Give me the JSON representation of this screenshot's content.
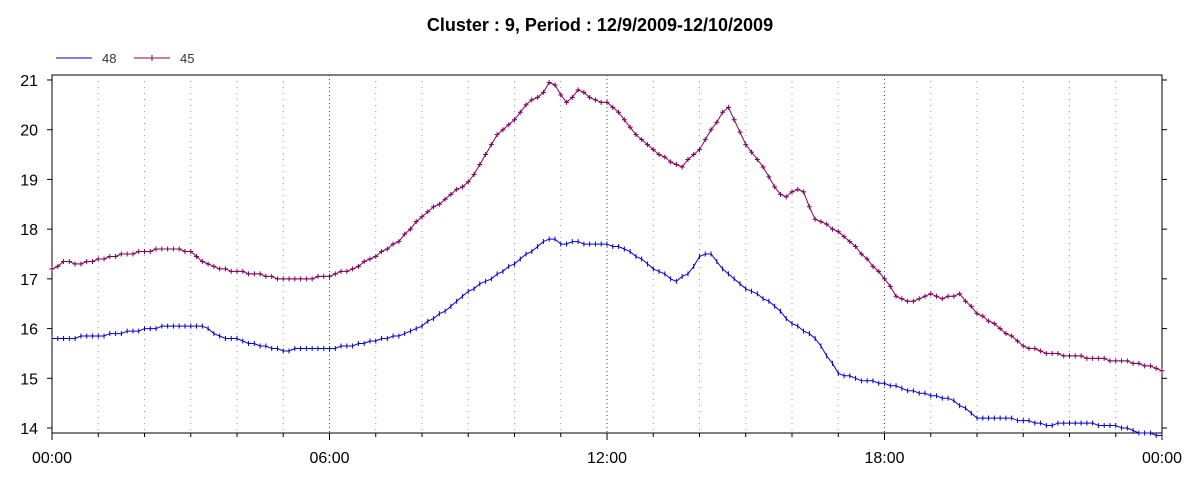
{
  "chart_data": {
    "type": "line",
    "title": "Cluster : 9, Period : 12/9/2009-12/10/2009",
    "xlabel": "",
    "ylabel": "",
    "x_unit": "hours",
    "xlim": [
      0,
      24
    ],
    "ylim": [
      13.9,
      21.1
    ],
    "x_ticks": [
      0,
      6,
      12,
      18,
      24
    ],
    "x_tick_labels": [
      "00:00",
      "06:00",
      "12:00",
      "18:00",
      "00:00"
    ],
    "y_ticks": [
      14,
      15,
      16,
      17,
      18,
      19,
      20,
      21
    ],
    "y_tick_labels": [
      "14",
      "15",
      "16",
      "17",
      "18",
      "19",
      "20",
      "21"
    ],
    "grid": "dotted vertical every hour",
    "legend_position": "top-left",
    "series": [
      {
        "name": "48",
        "color": "#0000cc",
        "marker": "tick",
        "points": [
          [
            0,
            15.78
          ],
          [
            0.5,
            15.82
          ],
          [
            1.0,
            15.85
          ],
          [
            1.5,
            15.92
          ],
          [
            2.0,
            15.98
          ],
          [
            2.5,
            16.05
          ],
          [
            3.0,
            16.05
          ],
          [
            3.3,
            16.02
          ],
          [
            3.6,
            15.85
          ],
          [
            4.0,
            15.78
          ],
          [
            4.5,
            15.65
          ],
          [
            5.0,
            15.55
          ],
          [
            5.5,
            15.6
          ],
          [
            6.0,
            15.6
          ],
          [
            6.5,
            15.65
          ],
          [
            7.0,
            15.75
          ],
          [
            7.5,
            15.85
          ],
          [
            8.0,
            16.05
          ],
          [
            8.5,
            16.35
          ],
          [
            9.0,
            16.75
          ],
          [
            9.5,
            17.0
          ],
          [
            10.0,
            17.3
          ],
          [
            10.5,
            17.65
          ],
          [
            10.8,
            17.85
          ],
          [
            11.0,
            17.7
          ],
          [
            11.3,
            17.75
          ],
          [
            11.6,
            17.7
          ],
          [
            12.0,
            17.7
          ],
          [
            12.5,
            17.55
          ],
          [
            13.0,
            17.2
          ],
          [
            13.5,
            16.95
          ],
          [
            13.8,
            17.15
          ],
          [
            14.0,
            17.45
          ],
          [
            14.2,
            17.55
          ],
          [
            14.5,
            17.2
          ],
          [
            15.0,
            16.8
          ],
          [
            15.5,
            16.55
          ],
          [
            16.0,
            16.1
          ],
          [
            16.5,
            15.8
          ],
          [
            17.0,
            15.1
          ],
          [
            17.5,
            14.95
          ],
          [
            18.0,
            14.9
          ],
          [
            18.5,
            14.75
          ],
          [
            19.0,
            14.65
          ],
          [
            19.5,
            14.55
          ],
          [
            20.0,
            14.2
          ],
          [
            20.5,
            14.2
          ],
          [
            21.0,
            14.15
          ],
          [
            21.5,
            14.05
          ],
          [
            22.0,
            14.1
          ],
          [
            22.5,
            14.08
          ],
          [
            23.0,
            14.05
          ],
          [
            23.5,
            13.9
          ],
          [
            24.0,
            13.85
          ]
        ]
      },
      {
        "name": "45",
        "color": "#800060",
        "marker": "plus",
        "points": [
          [
            0,
            17.2
          ],
          [
            0.3,
            17.35
          ],
          [
            0.6,
            17.3
          ],
          [
            1.0,
            17.38
          ],
          [
            1.5,
            17.48
          ],
          [
            2.0,
            17.55
          ],
          [
            2.5,
            17.6
          ],
          [
            3.0,
            17.55
          ],
          [
            3.3,
            17.3
          ],
          [
            3.6,
            17.2
          ],
          [
            4.0,
            17.15
          ],
          [
            4.5,
            17.08
          ],
          [
            5.0,
            17.0
          ],
          [
            5.5,
            17.0
          ],
          [
            6.0,
            17.05
          ],
          [
            6.5,
            17.2
          ],
          [
            7.0,
            17.45
          ],
          [
            7.5,
            17.75
          ],
          [
            8.0,
            18.25
          ],
          [
            8.5,
            18.6
          ],
          [
            9.0,
            18.95
          ],
          [
            9.3,
            19.35
          ],
          [
            9.6,
            19.9
          ],
          [
            10.0,
            20.2
          ],
          [
            10.3,
            20.55
          ],
          [
            10.6,
            20.7
          ],
          [
            10.8,
            21.05
          ],
          [
            11.1,
            20.5
          ],
          [
            11.4,
            20.8
          ],
          [
            11.7,
            20.6
          ],
          [
            12.0,
            20.55
          ],
          [
            12.3,
            20.3
          ],
          [
            12.6,
            19.9
          ],
          [
            13.0,
            19.6
          ],
          [
            13.3,
            19.4
          ],
          [
            13.6,
            19.25
          ],
          [
            14.0,
            19.6
          ],
          [
            14.3,
            20.05
          ],
          [
            14.6,
            20.5
          ],
          [
            14.8,
            20.1
          ],
          [
            15.0,
            19.7
          ],
          [
            15.4,
            19.2
          ],
          [
            15.8,
            18.6
          ],
          [
            16.2,
            18.85
          ],
          [
            16.5,
            18.2
          ],
          [
            16.8,
            18.05
          ],
          [
            17.2,
            17.8
          ],
          [
            17.5,
            17.5
          ],
          [
            18.0,
            17.0
          ],
          [
            18.3,
            16.6
          ],
          [
            18.6,
            16.55
          ],
          [
            19.0,
            16.7
          ],
          [
            19.3,
            16.6
          ],
          [
            19.6,
            16.7
          ],
          [
            20.0,
            16.3
          ],
          [
            20.5,
            16.0
          ],
          [
            21.0,
            15.65
          ],
          [
            21.5,
            15.5
          ],
          [
            22.0,
            15.45
          ],
          [
            22.5,
            15.4
          ],
          [
            23.0,
            15.35
          ],
          [
            23.5,
            15.3
          ],
          [
            24.0,
            15.15
          ]
        ]
      }
    ]
  }
}
